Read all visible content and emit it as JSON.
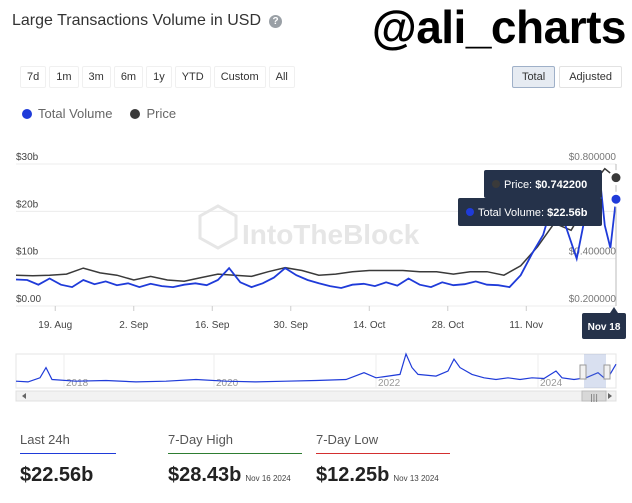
{
  "header": {
    "title": "Large Transactions Volume in USD",
    "help_icon": "question-circle-icon",
    "handle": "@ali_charts"
  },
  "ranges": [
    "7d",
    "1m",
    "3m",
    "6m",
    "1y",
    "YTD",
    "Custom",
    "All"
  ],
  "toggles": {
    "total": "Total",
    "adjusted": "Adjusted",
    "active": "Total"
  },
  "watermark": "IntoTheBlock",
  "colors": {
    "volume": "#1f3bd9",
    "price": "#3a3a3a",
    "tooltip_bg": "#25324a"
  },
  "chart_data": {
    "type": "line",
    "title": "Large Transactions Volume in USD",
    "legend": [
      "Total Volume",
      "Price"
    ],
    "legend_position": "top-left",
    "grid": true,
    "x_labels": [
      "19. Aug",
      "2. Sep",
      "16. Sep",
      "30. Sep",
      "14. Oct",
      "28. Oct",
      "11. Nov"
    ],
    "x_label_days": [
      7,
      21,
      35,
      49,
      63,
      77,
      91
    ],
    "y_left": {
      "ticks": [
        "$0.00",
        "$10b",
        "$20b",
        "$30b"
      ],
      "range": [
        0,
        30
      ]
    },
    "y_right": {
      "ticks": [
        "$0.200000",
        "$0.400000",
        "$0.800000"
      ],
      "range": [
        0.2,
        0.8
      ]
    },
    "series": [
      {
        "name": "Total Volume",
        "unit": "USD billions",
        "points": [
          [
            0,
            5.6
          ],
          [
            2,
            5.5
          ],
          [
            4,
            4.5
          ],
          [
            6,
            5.8
          ],
          [
            8,
            4.5
          ],
          [
            10,
            4.0
          ],
          [
            12,
            5.5
          ],
          [
            14,
            4.6
          ],
          [
            16,
            5.2
          ],
          [
            18,
            4.4
          ],
          [
            20,
            4.8
          ],
          [
            22,
            4.0
          ],
          [
            24,
            4.7
          ],
          [
            26,
            4.2
          ],
          [
            28,
            4.0
          ],
          [
            30,
            4.5
          ],
          [
            32,
            4.8
          ],
          [
            34,
            4.4
          ],
          [
            36,
            5.5
          ],
          [
            38,
            8.0
          ],
          [
            40,
            5.0
          ],
          [
            42,
            4.0
          ],
          [
            44,
            4.8
          ],
          [
            46,
            6.0
          ],
          [
            48,
            8.0
          ],
          [
            50,
            6.5
          ],
          [
            52,
            5.5
          ],
          [
            54,
            4.8
          ],
          [
            56,
            4.2
          ],
          [
            58,
            3.8
          ],
          [
            60,
            4.5
          ],
          [
            62,
            4.7
          ],
          [
            64,
            4.2
          ],
          [
            66,
            5.0
          ],
          [
            68,
            4.3
          ],
          [
            70,
            5.8
          ],
          [
            72,
            4.5
          ],
          [
            74,
            4.0
          ],
          [
            76,
            5.0
          ],
          [
            78,
            4.4
          ],
          [
            80,
            4.6
          ],
          [
            82,
            5.2
          ],
          [
            84,
            4.5
          ],
          [
            86,
            4.4
          ],
          [
            88,
            4.0
          ],
          [
            90,
            6.5
          ],
          [
            92,
            11.0
          ],
          [
            94,
            15.0
          ],
          [
            96,
            23.0
          ],
          [
            98,
            17.0
          ],
          [
            100,
            10.0
          ],
          [
            102,
            22.0
          ],
          [
            104,
            28.4
          ],
          [
            105,
            17.0
          ],
          [
            106,
            12.25
          ],
          [
            107,
            22.56
          ]
        ]
      },
      {
        "name": "Price",
        "unit": "USD",
        "points": [
          [
            0,
            0.33
          ],
          [
            3,
            0.328
          ],
          [
            6,
            0.33
          ],
          [
            9,
            0.335
          ],
          [
            12,
            0.36
          ],
          [
            15,
            0.34
          ],
          [
            18,
            0.33
          ],
          [
            21,
            0.31
          ],
          [
            24,
            0.325
          ],
          [
            27,
            0.31
          ],
          [
            30,
            0.305
          ],
          [
            33,
            0.32
          ],
          [
            36,
            0.335
          ],
          [
            39,
            0.33
          ],
          [
            42,
            0.325
          ],
          [
            45,
            0.345
          ],
          [
            48,
            0.362
          ],
          [
            51,
            0.35
          ],
          [
            54,
            0.33
          ],
          [
            57,
            0.335
          ],
          [
            60,
            0.345
          ],
          [
            63,
            0.35
          ],
          [
            66,
            0.35
          ],
          [
            69,
            0.35
          ],
          [
            72,
            0.345
          ],
          [
            75,
            0.345
          ],
          [
            78,
            0.335
          ],
          [
            81,
            0.345
          ],
          [
            84,
            0.345
          ],
          [
            87,
            0.33
          ],
          [
            90,
            0.37
          ],
          [
            93,
            0.45
          ],
          [
            96,
            0.55
          ],
          [
            99,
            0.52
          ],
          [
            101,
            0.6
          ],
          [
            103,
            0.72
          ],
          [
            105,
            0.78
          ],
          [
            107,
            0.7422
          ]
        ]
      }
    ],
    "tooltip": {
      "price_label": "Price:",
      "price_value": "$0.742200",
      "volume_label": "Total Volume:",
      "volume_value": "$22.56b",
      "date": "Nov 18"
    }
  },
  "navigator": {
    "years": [
      "2018",
      "2020",
      "2022",
      "2024"
    ],
    "scroll_icon": "grip-lines-icon",
    "points": [
      [
        0,
        0.2
      ],
      [
        2,
        0.18
      ],
      [
        4,
        0.3
      ],
      [
        5,
        0.6
      ],
      [
        6,
        0.25
      ],
      [
        10,
        0.2
      ],
      [
        15,
        0.22
      ],
      [
        20,
        0.18
      ],
      [
        25,
        0.2
      ],
      [
        30,
        0.25
      ],
      [
        35,
        0.2
      ],
      [
        40,
        0.18
      ],
      [
        45,
        0.2
      ],
      [
        50,
        0.22
      ],
      [
        55,
        0.25
      ],
      [
        58,
        0.45
      ],
      [
        60,
        0.3
      ],
      [
        62,
        0.35
      ],
      [
        64,
        0.4
      ],
      [
        65,
        1.0
      ],
      [
        66,
        0.6
      ],
      [
        67,
        0.4
      ],
      [
        70,
        0.35
      ],
      [
        72,
        0.5
      ],
      [
        73,
        0.85
      ],
      [
        74,
        0.6
      ],
      [
        76,
        0.4
      ],
      [
        78,
        0.3
      ],
      [
        80,
        0.25
      ],
      [
        82,
        0.3
      ],
      [
        84,
        0.25
      ],
      [
        86,
        0.3
      ],
      [
        88,
        0.28
      ],
      [
        90,
        0.5
      ],
      [
        91,
        0.3
      ],
      [
        93,
        0.25
      ],
      [
        95,
        0.3
      ],
      [
        97,
        0.45
      ],
      [
        98,
        0.3
      ],
      [
        99,
        0.4
      ],
      [
        100,
        0.7
      ]
    ]
  },
  "stats": [
    {
      "label": "Last 24h",
      "value": "$22.56b",
      "date": ""
    },
    {
      "label": "7-Day High",
      "value": "$28.43b",
      "date": "Nov 16 2024"
    },
    {
      "label": "7-Day Low",
      "value": "$12.25b",
      "date": "Nov 13 2024"
    }
  ]
}
